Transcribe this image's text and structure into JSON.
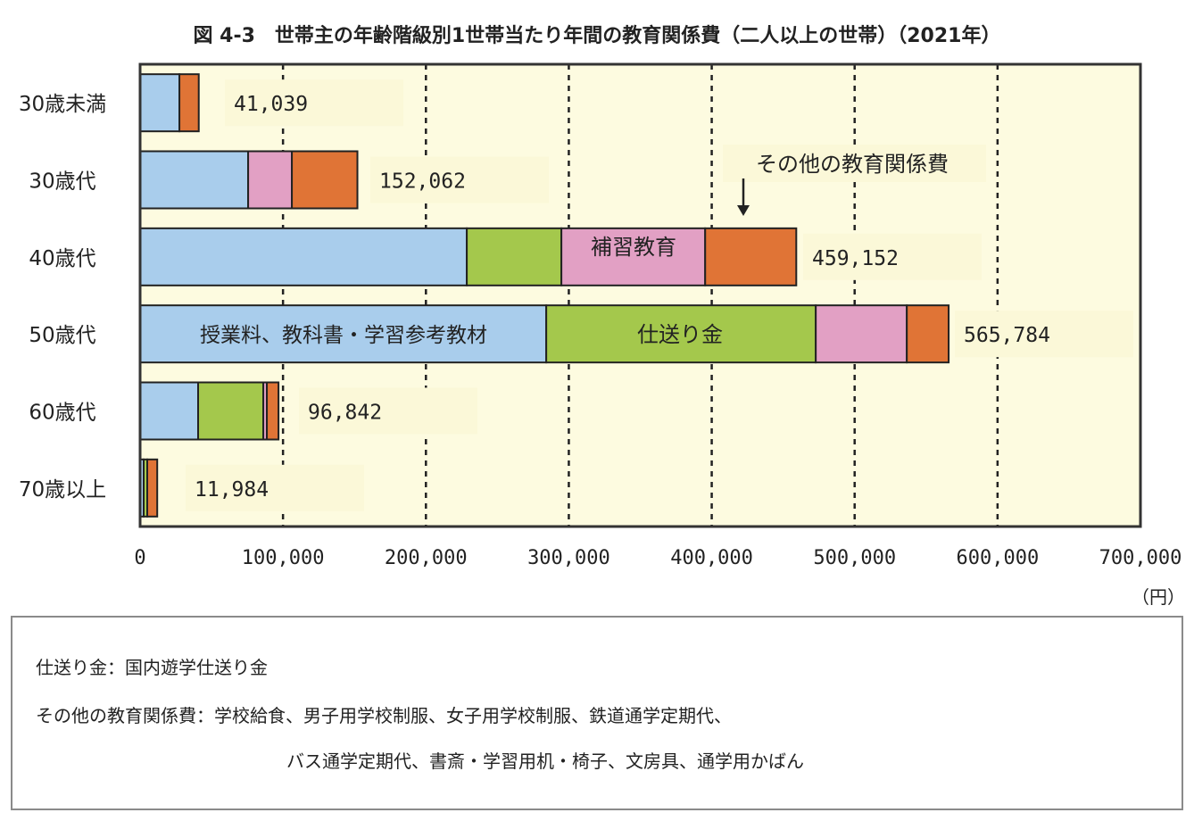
{
  "chart_data": {
    "type": "bar",
    "orientation": "horizontal",
    "stacked": true,
    "title": "図 4-3　世帯主の年齢階級別1世帯当たり年間の教育関係費（二人以上の世帯）（2021年）",
    "categories": [
      "30歳未満",
      "30歳代",
      "40歳代",
      "50歳代",
      "60歳代",
      "70歳以上"
    ],
    "series": [
      {
        "name": "授業料、教科書・学習参考教材",
        "color": "#a9cdec",
        "values": [
          27500,
          75600,
          228600,
          284200,
          40600,
          2500
        ]
      },
      {
        "name": "仕送り金",
        "color": "#a4c84c",
        "values": [
          0,
          0,
          66200,
          188600,
          45600,
          2500
        ]
      },
      {
        "name": "補習教育",
        "color": "#e2a0c4",
        "values": [
          0,
          30600,
          100600,
          63700,
          2500,
          0
        ]
      },
      {
        "name": "その他の教育関係費",
        "color": "#e07436",
        "values": [
          13539,
          45862,
          63752,
          29284,
          8142,
          6984
        ]
      }
    ],
    "totals": [
      "41,039",
      "152,062",
      "459,152",
      "565,784",
      "96,842",
      "11,984"
    ],
    "xlim": [
      0,
      700000
    ],
    "xticks": [
      "0",
      "100,000",
      "200,000",
      "300,000",
      "400,000",
      "500,000",
      "600,000",
      "700,000"
    ],
    "xunit": "（円）",
    "grid": "vertical dashed",
    "annotations": {
      "tuition": "授業料、教科書・学習参考教材",
      "allowance": "仕送り金",
      "supplementary": "補習教育",
      "other": "その他の教育関係費"
    }
  },
  "notes": {
    "line1": "仕送り金：国内遊学仕送り金",
    "line2": "その他の教育関係費：学校給食、男子用学校制服、女子用学校制服、鉄道通学定期代、",
    "line3": "バス通学定期代、書斎・学習用机・椅子、文房具、通学用かばん"
  }
}
